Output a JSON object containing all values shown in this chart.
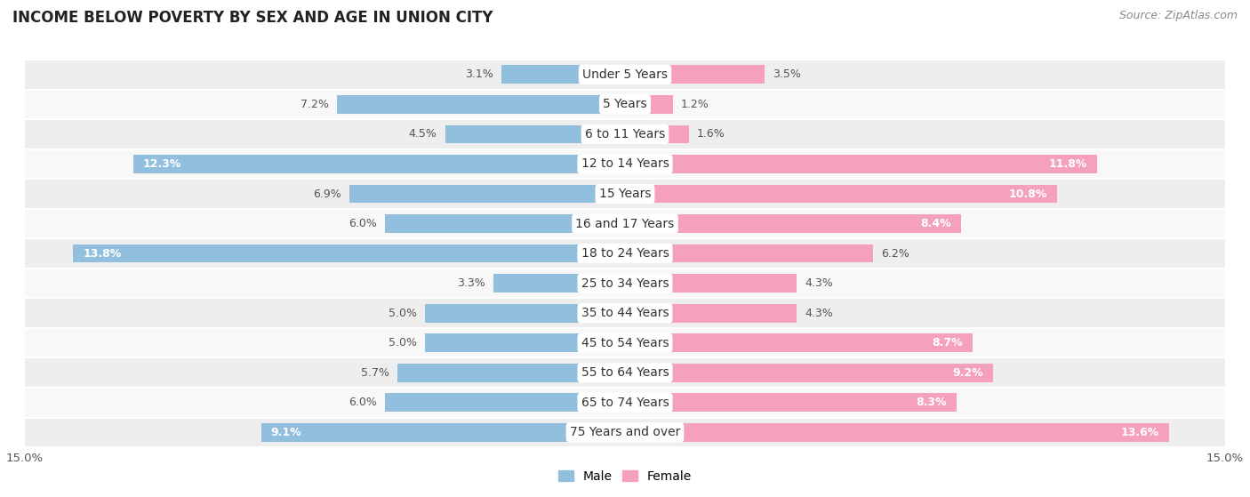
{
  "title": "INCOME BELOW POVERTY BY SEX AND AGE IN UNION CITY",
  "source": "Source: ZipAtlas.com",
  "categories": [
    "Under 5 Years",
    "5 Years",
    "6 to 11 Years",
    "12 to 14 Years",
    "15 Years",
    "16 and 17 Years",
    "18 to 24 Years",
    "25 to 34 Years",
    "35 to 44 Years",
    "45 to 54 Years",
    "55 to 64 Years",
    "65 to 74 Years",
    "75 Years and over"
  ],
  "male_values": [
    3.1,
    7.2,
    4.5,
    12.3,
    6.9,
    6.0,
    13.8,
    3.3,
    5.0,
    5.0,
    5.7,
    6.0,
    9.1
  ],
  "female_values": [
    3.5,
    1.2,
    1.6,
    11.8,
    10.8,
    8.4,
    6.2,
    4.3,
    4.3,
    8.7,
    9.2,
    8.3,
    13.6
  ],
  "male_color": "#92bfde",
  "female_color": "#f4a0be",
  "male_label": "Male",
  "female_label": "Female",
  "xlim": 15.0,
  "bar_height": 0.62,
  "row_bg_even": "#eeeeee",
  "row_bg_odd": "#f8f8f8",
  "title_fontsize": 12,
  "source_fontsize": 9,
  "label_fontsize": 9,
  "tick_fontsize": 9.5,
  "legend_fontsize": 10,
  "category_fontsize": 10,
  "male_inside_threshold": 8.5,
  "female_inside_threshold": 8.0
}
